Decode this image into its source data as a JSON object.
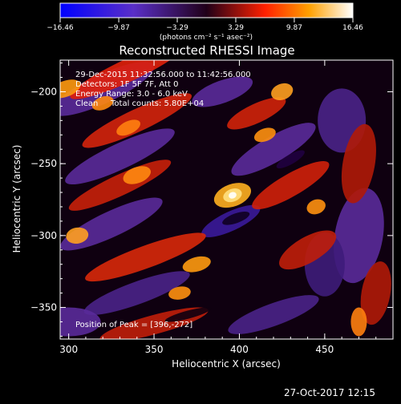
{
  "colors": {
    "background": "#000000",
    "text": "#ffffff"
  },
  "colorbar": {
    "ticks": [
      "−16.46",
      "−9.87",
      "−3.29",
      "3.29",
      "9.87",
      "16.46"
    ],
    "values": [
      -16.46,
      -9.87,
      -3.29,
      3.29,
      9.87,
      16.46
    ],
    "range": [
      -16.46,
      16.46
    ],
    "colormap": "blue-purple-red-yellow-white",
    "label": "(photons cm⁻² s⁻¹ asec⁻²)"
  },
  "chart_data": {
    "type": "heatmap",
    "title": "Reconstructed RHESSI Image",
    "xlabel": "Heliocentric X (arcsec)",
    "ylabel": "Heliocentric Y (arcsec)",
    "xlim": [
      295,
      490
    ],
    "ylim": [
      -372,
      -178
    ],
    "xticks": [
      300,
      350,
      400,
      450
    ],
    "yticks": [
      -200,
      -250,
      -300,
      -350
    ],
    "xtick_labels": [
      "300",
      "350",
      "400",
      "450"
    ],
    "ytick_labels": [
      "−200",
      "−250",
      "−300",
      "−350"
    ],
    "peak": {
      "x": 396,
      "y": -272
    },
    "annotations": {
      "time_range": "29-Dec-2015 11:32:56.000 to 11:42:56.000",
      "detectors": "Detectors: 1F 5F 7F, Att 0",
      "energy": "Energy Range: 3.0 - 6.0 keV",
      "method": "Clean",
      "counts": "Total counts: 5.80E+04",
      "peak_label": "Position of Peak = [396,-272]"
    }
  },
  "footer": {
    "date": "27-Oct-2017 12:15"
  }
}
